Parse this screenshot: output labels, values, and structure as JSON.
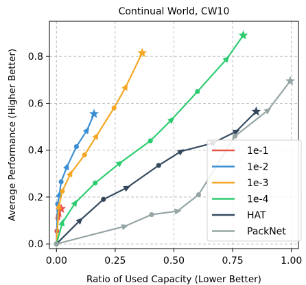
{
  "chart_data": {
    "type": "line",
    "title": "Continual World, CW10",
    "xlabel": "Ratio of Used Capacity (Lower Better)",
    "ylabel": "Average Performance (Higher Better)",
    "xlim": [
      -0.03,
      1.03
    ],
    "ylim": [
      -0.02,
      0.95
    ],
    "xticks": [
      0.0,
      0.25,
      0.5,
      0.75,
      1.0
    ],
    "xtick_labels": [
      "0.00",
      "0.25",
      "0.50",
      "0.75",
      "1.00"
    ],
    "yticks": [
      0.0,
      0.2,
      0.4,
      0.6,
      0.8
    ],
    "ytick_labels": [
      "0.0",
      "0.2",
      "0.4",
      "0.6",
      "0.8"
    ],
    "grid": true,
    "legend_position": "bottom-right",
    "series": [
      {
        "name": "1e-1",
        "color": "#e8524a",
        "points": [
          {
            "x": 0.0,
            "y": 0.0,
            "marker": "circle"
          },
          {
            "x": 0.002,
            "y": 0.055,
            "marker": "circle"
          },
          {
            "x": 0.006,
            "y": 0.11,
            "marker": "circle"
          },
          {
            "x": 0.012,
            "y": 0.13,
            "marker": "arrow"
          },
          {
            "x": 0.02,
            "y": 0.15,
            "marker": "star"
          }
        ]
      },
      {
        "name": "1e-2",
        "color": "#3a8fd4",
        "points": [
          {
            "x": 0.0,
            "y": 0.0,
            "marker": "circle"
          },
          {
            "x": 0.005,
            "y": 0.17,
            "marker": "circle"
          },
          {
            "x": 0.012,
            "y": 0.21,
            "marker": "arrow"
          },
          {
            "x": 0.02,
            "y": 0.265,
            "marker": "circle"
          },
          {
            "x": 0.045,
            "y": 0.33,
            "marker": "arrow"
          },
          {
            "x": 0.085,
            "y": 0.415,
            "marker": "circle"
          },
          {
            "x": 0.13,
            "y": 0.485,
            "marker": "arrow"
          },
          {
            "x": 0.16,
            "y": 0.555,
            "marker": "star"
          }
        ]
      },
      {
        "name": "1e-3",
        "color": "#f5a623",
        "points": [
          {
            "x": 0.0,
            "y": 0.0,
            "marker": "circle"
          },
          {
            "x": 0.01,
            "y": 0.16,
            "marker": "arrow"
          },
          {
            "x": 0.025,
            "y": 0.225,
            "marker": "circle"
          },
          {
            "x": 0.06,
            "y": 0.3,
            "marker": "arrow"
          },
          {
            "x": 0.12,
            "y": 0.38,
            "marker": "circle"
          },
          {
            "x": 0.17,
            "y": 0.46,
            "marker": "arrow"
          },
          {
            "x": 0.245,
            "y": 0.58,
            "marker": "circle"
          },
          {
            "x": 0.295,
            "y": 0.67,
            "marker": "arrow"
          },
          {
            "x": 0.365,
            "y": 0.815,
            "marker": "star"
          }
        ]
      },
      {
        "name": "1e-4",
        "color": "#2ecc71",
        "points": [
          {
            "x": 0.0,
            "y": 0.0,
            "marker": "circle"
          },
          {
            "x": 0.025,
            "y": 0.09,
            "marker": "arrow"
          },
          {
            "x": 0.08,
            "y": 0.175,
            "marker": "arrow"
          },
          {
            "x": 0.165,
            "y": 0.26,
            "marker": "circle"
          },
          {
            "x": 0.27,
            "y": 0.345,
            "marker": "arrow"
          },
          {
            "x": 0.4,
            "y": 0.44,
            "marker": "circle"
          },
          {
            "x": 0.49,
            "y": 0.53,
            "marker": "arrow"
          },
          {
            "x": 0.6,
            "y": 0.65,
            "marker": "circle"
          },
          {
            "x": 0.725,
            "y": 0.79,
            "marker": "arrow"
          },
          {
            "x": 0.795,
            "y": 0.89,
            "marker": "star"
          }
        ]
      },
      {
        "name": "HAT",
        "color": "#34495e",
        "points": [
          {
            "x": 0.0,
            "y": 0.0,
            "marker": "circle"
          },
          {
            "x": 0.1,
            "y": 0.1,
            "marker": "arrow"
          },
          {
            "x": 0.2,
            "y": 0.19,
            "marker": "circle"
          },
          {
            "x": 0.3,
            "y": 0.24,
            "marker": "arrow"
          },
          {
            "x": 0.435,
            "y": 0.335,
            "marker": "circle"
          },
          {
            "x": 0.53,
            "y": 0.395,
            "marker": "arrow"
          },
          {
            "x": 0.665,
            "y": 0.43,
            "marker": "circle"
          },
          {
            "x": 0.765,
            "y": 0.48,
            "marker": "arrow"
          },
          {
            "x": 0.85,
            "y": 0.565,
            "marker": "star"
          }
        ]
      },
      {
        "name": "PackNet",
        "color": "#95a5a6",
        "points": [
          {
            "x": 0.0,
            "y": 0.0,
            "marker": "circle"
          },
          {
            "x": 0.29,
            "y": 0.075,
            "marker": "arrow"
          },
          {
            "x": 0.405,
            "y": 0.125,
            "marker": "circle"
          },
          {
            "x": 0.515,
            "y": 0.14,
            "marker": "arrow"
          },
          {
            "x": 0.605,
            "y": 0.21,
            "marker": "circle"
          },
          {
            "x": 0.76,
            "y": 0.46,
            "marker": "circle"
          },
          {
            "x": 0.9,
            "y": 0.57,
            "marker": "arrow"
          },
          {
            "x": 0.995,
            "y": 0.695,
            "marker": "star"
          }
        ]
      }
    ]
  }
}
